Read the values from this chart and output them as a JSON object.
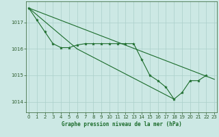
{
  "background_color": "#cce8e4",
  "grid_color": "#aacfca",
  "line_color": "#1a6b2a",
  "marker_color": "#1a6b2a",
  "xlabel": "Graphe pression niveau de la mer (hPa)",
  "xlabel_color": "#1a6b2a",
  "tick_color": "#2a5a2a",
  "ylim": [
    1013.6,
    1017.8
  ],
  "xlim": [
    -0.3,
    23.3
  ],
  "yticks": [
    1014,
    1015,
    1016,
    1017
  ],
  "xticks": [
    0,
    1,
    2,
    3,
    4,
    5,
    6,
    7,
    8,
    9,
    10,
    11,
    12,
    13,
    14,
    15,
    16,
    17,
    18,
    19,
    20,
    21,
    22,
    23
  ],
  "series": [
    {
      "x": [
        0,
        1,
        2,
        3,
        4,
        5,
        6,
        7,
        8,
        9,
        10,
        11,
        12,
        13,
        14,
        15,
        16,
        17,
        18,
        19,
        20,
        21,
        22
      ],
      "y": [
        1017.55,
        1017.1,
        1016.65,
        1016.2,
        1016.05,
        1016.05,
        1016.15,
        1016.2,
        1016.2,
        1016.2,
        1016.2,
        1016.2,
        1016.2,
        1016.2,
        1015.6,
        1015.0,
        1014.8,
        1014.55,
        1014.1,
        1014.35,
        1014.8,
        1014.8,
        1015.0
      ],
      "markers": true
    },
    {
      "x": [
        0,
        6
      ],
      "y": [
        1017.55,
        1016.0
      ],
      "markers": false
    },
    {
      "x": [
        0,
        23
      ],
      "y": [
        1017.55,
        1014.85
      ],
      "markers": false
    },
    {
      "x": [
        6,
        18
      ],
      "y": [
        1016.0,
        1014.1
      ],
      "markers": false
    }
  ]
}
